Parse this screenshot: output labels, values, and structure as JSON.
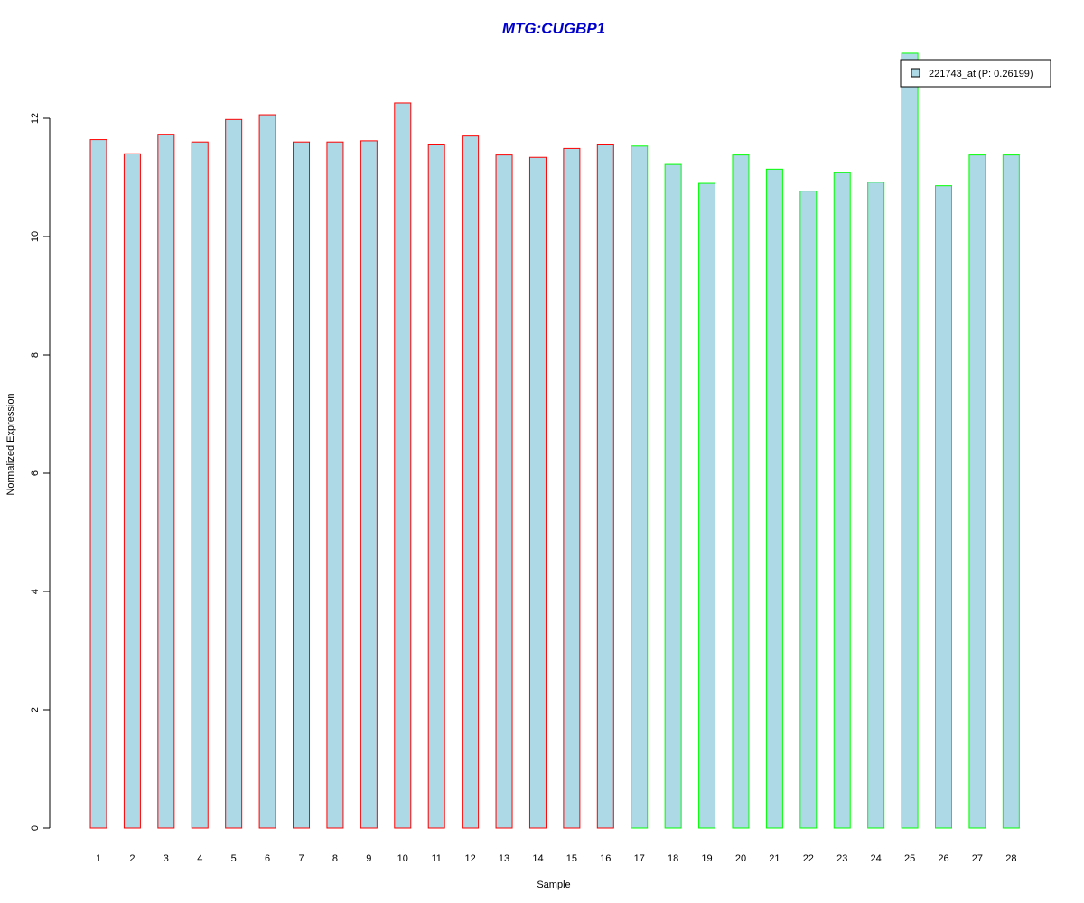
{
  "chart_data": {
    "type": "bar",
    "title": "MTG:CUGBP1",
    "xlabel": "Sample",
    "ylabel": "Normalized Expression",
    "ylim": [
      0,
      13.2
    ],
    "yticks": [
      0,
      2,
      4,
      6,
      8,
      10,
      12
    ],
    "categories": [
      "1",
      "2",
      "3",
      "4",
      "5",
      "6",
      "7",
      "8",
      "9",
      "10",
      "11",
      "12",
      "13",
      "14",
      "15",
      "16",
      "17",
      "18",
      "19",
      "20",
      "21",
      "22",
      "23",
      "24",
      "25",
      "26",
      "27",
      "28"
    ],
    "series": [
      {
        "name": "221743_at (P: 0.26199)",
        "values": [
          11.64,
          11.4,
          11.73,
          11.6,
          11.98,
          12.06,
          11.6,
          11.6,
          11.62,
          12.26,
          11.55,
          11.7,
          11.38,
          11.34,
          11.49,
          11.55,
          11.53,
          11.22,
          10.9,
          11.38,
          11.14,
          10.77,
          11.08,
          10.92,
          13.1,
          10.86,
          11.38,
          11.38
        ]
      }
    ],
    "groups": [
      1,
      1,
      1,
      1,
      1,
      1,
      1,
      1,
      1,
      1,
      1,
      1,
      1,
      1,
      1,
      1,
      2,
      2,
      2,
      2,
      2,
      2,
      2,
      2,
      2,
      2,
      2,
      2
    ],
    "grid": false,
    "legend_position": "top-right"
  },
  "colors": {
    "title": "#0000cc",
    "bar_fill": "#add8e6",
    "group1_border": "#ff0000",
    "group2_border": "#00ff00",
    "axis": "#000000"
  }
}
